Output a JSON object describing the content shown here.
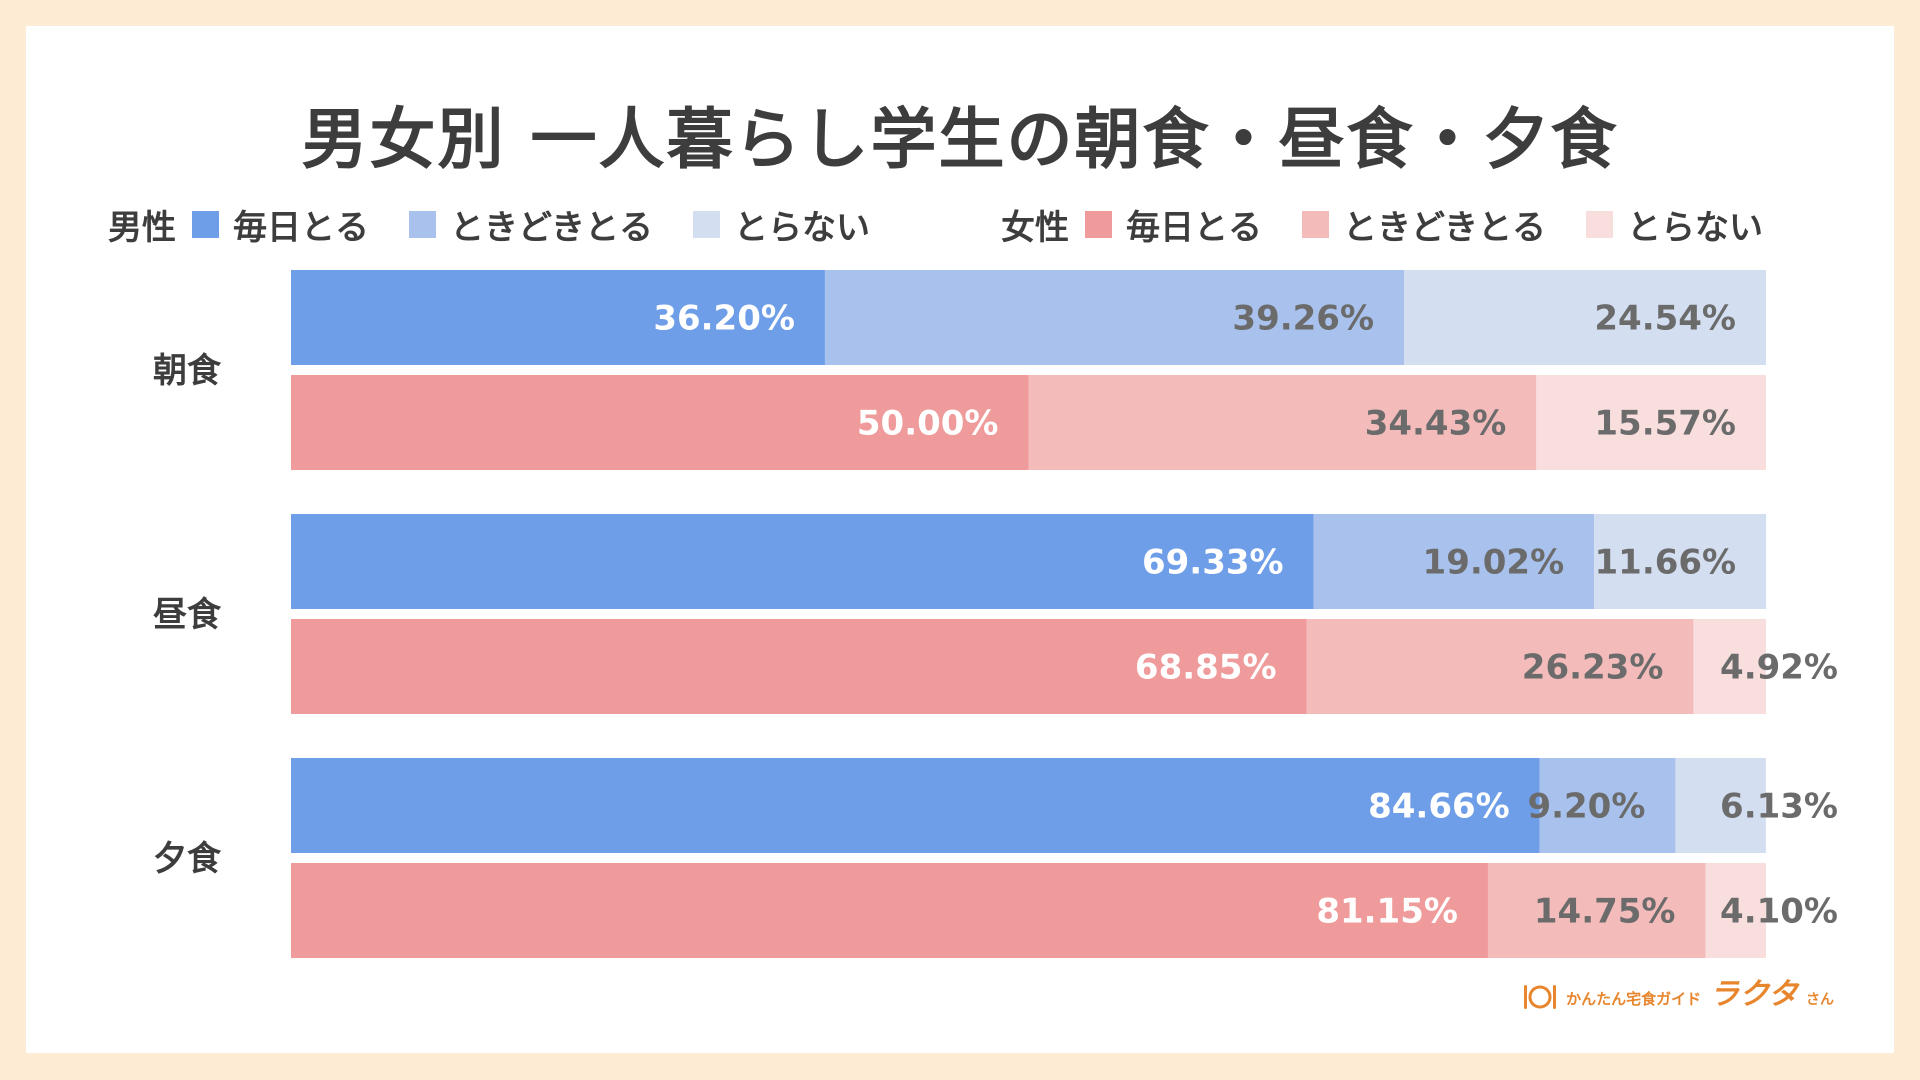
{
  "title": "男女別 一人暮らし学生の朝食・昼食・夕食",
  "legend": {
    "male": {
      "label": "男性",
      "items": [
        {
          "label": "毎日とる",
          "color": "#6f9ee8"
        },
        {
          "label": "ときどきとる",
          "color": "#a9c2ed"
        },
        {
          "label": "とらない",
          "color": "#d3def1"
        }
      ]
    },
    "female": {
      "label": "女性",
      "items": [
        {
          "label": "毎日とる",
          "color": "#ef9b9b"
        },
        {
          "label": "ときどきとる",
          "color": "#f3bcbb"
        },
        {
          "label": "とらない",
          "color": "#f9dede"
        }
      ]
    }
  },
  "chart_data": {
    "type": "bar",
    "orientation": "horizontal",
    "stacked": "100%",
    "title": "男女別 一人暮らし学生の朝食・昼食・夕食",
    "categories": [
      "朝食",
      "昼食",
      "夕食"
    ],
    "segments": [
      "毎日とる",
      "ときどきとる",
      "とらない"
    ],
    "series": [
      {
        "name": "男性",
        "colors": [
          "#6f9ee8",
          "#a9c2ed",
          "#d3def1"
        ],
        "values": [
          [
            36.2,
            39.26,
            24.54
          ],
          [
            69.33,
            19.02,
            11.66
          ],
          [
            84.66,
            9.2,
            6.13
          ]
        ],
        "labels": [
          [
            "36.20%",
            "39.26%",
            "24.54%"
          ],
          [
            "69.33%",
            "19.02%",
            "11.66%"
          ],
          [
            "84.66%",
            "9.20%",
            "6.13%"
          ]
        ]
      },
      {
        "name": "女性",
        "colors": [
          "#ef9b9b",
          "#f3bcbb",
          "#f9dede"
        ],
        "values": [
          [
            50.0,
            34.43,
            15.57
          ],
          [
            68.85,
            26.23,
            4.92
          ],
          [
            81.15,
            14.75,
            4.1
          ]
        ],
        "labels": [
          [
            "50.00%",
            "34.43%",
            "15.57%"
          ],
          [
            "68.85%",
            "26.23%",
            "4.92%"
          ],
          [
            "81.15%",
            "14.75%",
            "4.10%"
          ]
        ]
      }
    ],
    "xlim": [
      0,
      100
    ]
  },
  "logo": {
    "sub": "かんたん宅食ガイド",
    "main": "ラクタ",
    "suffix": "さん"
  }
}
